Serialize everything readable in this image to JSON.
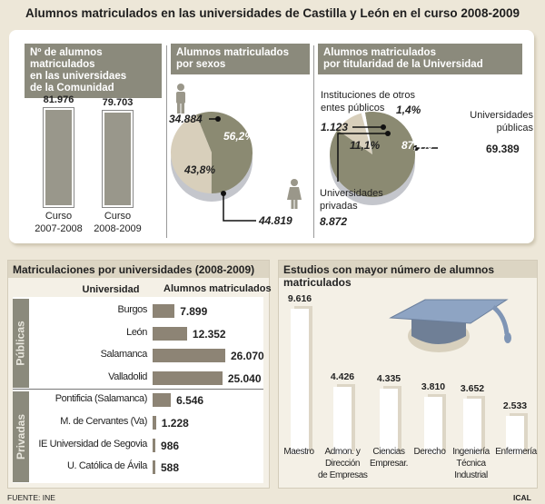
{
  "title": "Alumnos matriculados en las universidades de Castilla y León en el curso 2008-2009",
  "colors": {
    "dark_slice": "#8b8a72",
    "light_slice": "#d8cfbb",
    "header_gray": "#8b8a7c",
    "bar_brown": "#8d8475",
    "background": "#ede7d8"
  },
  "icons": [
    "man-icon",
    "woman-icon",
    "graduation-cap-icon"
  ],
  "chart_data": [
    {
      "type": "bar",
      "title": "Nº de alumnos matriculados en las universidaes de la Comunidad",
      "title_lines": [
        "Nº de alumnos matriculados",
        "en las universidaes",
        "de la Comunidad"
      ],
      "categories": [
        [
          "Curso",
          "2007-2008"
        ],
        [
          "Curso",
          "2008-2009"
        ]
      ],
      "values": [
        81976,
        79703
      ],
      "value_labels": [
        "81.976",
        "79.703"
      ]
    },
    {
      "type": "pie",
      "title_lines": [
        "Alumnos matriculados",
        "por sexos"
      ],
      "slices": [
        {
          "value": 44819,
          "label": "44.819",
          "percent": 56.2,
          "percent_label": "56,2%",
          "icon": "woman-icon"
        },
        {
          "value": 34884,
          "label": "34.884",
          "percent": 43.8,
          "percent_label": "43,8%",
          "icon": "man-icon"
        }
      ]
    },
    {
      "type": "pie",
      "title_lines": [
        "Alumnos matriculados",
        "por titularidad de la Universidad"
      ],
      "slices": [
        {
          "name_lines": [
            "Universidades",
            "públicas"
          ],
          "value": 69389,
          "label": "69.389",
          "percent": 87.4,
          "percent_label": "87,4%"
        },
        {
          "name_lines": [
            "Universidades",
            "privadas"
          ],
          "value": 8872,
          "label": "8.872",
          "percent": 11.1,
          "percent_label": "11,1%"
        },
        {
          "name_lines": [
            "Instituciones de otros",
            "entes públicos"
          ],
          "value": 1123,
          "label": "1.123",
          "percent": 1.4,
          "percent_label": "1,4%"
        }
      ]
    },
    {
      "type": "bar",
      "orientation": "horizontal",
      "title": "Matriculaciones por universidades (2008-2009)",
      "col_headers": [
        "Universidad",
        "Alumnos matriculados"
      ],
      "groups": [
        {
          "name": "Públicas",
          "rows": [
            {
              "name": "Burgos",
              "value": 7899,
              "label": "7.899"
            },
            {
              "name": "León",
              "value": 12352,
              "label": "12.352"
            },
            {
              "name": "Salamanca",
              "value": 26070,
              "label": "26.070"
            },
            {
              "name": "Valladolid",
              "value": 25040,
              "label": "25.040"
            }
          ]
        },
        {
          "name": "Privadas",
          "rows": [
            {
              "name": "Pontificia (Salamanca)",
              "value": 6546,
              "label": "6.546"
            },
            {
              "name": "M. de Cervantes (Va)",
              "value": 1228,
              "label": "1.228"
            },
            {
              "name": "IE Universidad de Segovia",
              "value": 986,
              "label": "986"
            },
            {
              "name": "U. Católica de Ávila",
              "value": 588,
              "label": "588"
            }
          ]
        }
      ]
    },
    {
      "type": "bar",
      "title": "Estudios con mayor número de alumnos matriculados",
      "categories": [
        [
          "Maestro"
        ],
        [
          "Admon. y",
          "Dirección",
          "de Empresas"
        ],
        [
          "Ciencias",
          "Empresar."
        ],
        [
          "Derecho"
        ],
        [
          "Ingeniería",
          "Técnica",
          "Industrial"
        ],
        [
          "Enfermería"
        ]
      ],
      "values": [
        9616,
        4426,
        4335,
        3810,
        3652,
        2533
      ],
      "value_labels": [
        "9.616",
        "4.426",
        "4.335",
        "3.810",
        "3.652",
        "2.533"
      ]
    }
  ],
  "footer": {
    "source": "FUENTE: INE",
    "credit": "ICAL"
  }
}
